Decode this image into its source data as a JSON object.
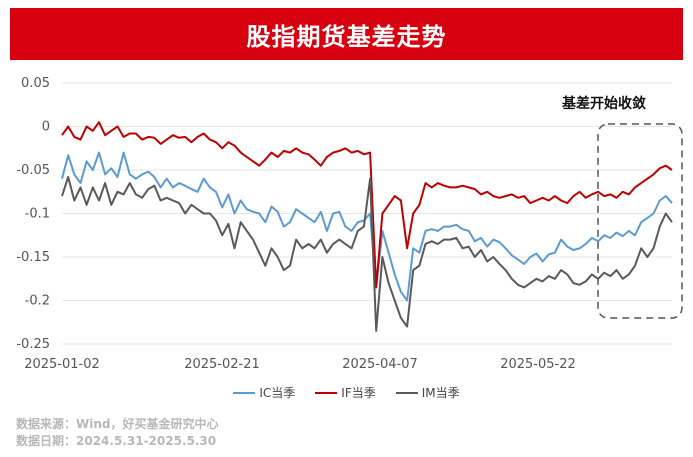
{
  "title": "股指期货基差走势",
  "footer": {
    "source": "数据来源：Wind，好买基金研究中心",
    "date": "数据日期：2024.5.31-2025.5.30"
  },
  "chart_data": {
    "type": "line",
    "annotation": "基差开始收敛",
    "y_ticks": [
      "0.05",
      "0",
      "-0.05",
      "-0.1",
      "-0.15",
      "-0.2",
      "-0.25"
    ],
    "ylim": [
      -0.25,
      0.05
    ],
    "x_tick_labels": [
      "2025-01-02",
      "2025-02-21",
      "2025-04-07",
      "2025-05-22"
    ],
    "grid": true,
    "legend_position": "bottom",
    "series": [
      {
        "name": "IC当季",
        "color": "#5b9bd5",
        "values": [
          -0.06,
          -0.033,
          -0.055,
          -0.065,
          -0.04,
          -0.05,
          -0.03,
          -0.055,
          -0.048,
          -0.058,
          -0.03,
          -0.055,
          -0.06,
          -0.055,
          -0.052,
          -0.058,
          -0.07,
          -0.06,
          -0.07,
          -0.065,
          -0.068,
          -0.072,
          -0.075,
          -0.06,
          -0.07,
          -0.075,
          -0.093,
          -0.078,
          -0.1,
          -0.085,
          -0.095,
          -0.098,
          -0.1,
          -0.11,
          -0.092,
          -0.098,
          -0.115,
          -0.11,
          -0.095,
          -0.1,
          -0.105,
          -0.11,
          -0.098,
          -0.12,
          -0.1,
          -0.098,
          -0.115,
          -0.12,
          -0.11,
          -0.108,
          -0.1,
          -0.185,
          -0.12,
          -0.145,
          -0.17,
          -0.19,
          -0.2,
          -0.14,
          -0.145,
          -0.12,
          -0.118,
          -0.12,
          -0.115,
          -0.115,
          -0.113,
          -0.118,
          -0.12,
          -0.132,
          -0.128,
          -0.138,
          -0.13,
          -0.133,
          -0.14,
          -0.148,
          -0.153,
          -0.158,
          -0.15,
          -0.146,
          -0.155,
          -0.147,
          -0.145,
          -0.13,
          -0.138,
          -0.142,
          -0.14,
          -0.135,
          -0.128,
          -0.132,
          -0.125,
          -0.128,
          -0.122,
          -0.126,
          -0.12,
          -0.125,
          -0.11,
          -0.105,
          -0.1,
          -0.085,
          -0.08,
          -0.088
        ]
      },
      {
        "name": "IF当季",
        "color": "#c00000",
        "values": [
          -0.01,
          0.0,
          -0.012,
          -0.015,
          0.0,
          -0.005,
          0.005,
          -0.01,
          -0.005,
          0.0,
          -0.012,
          -0.008,
          -0.008,
          -0.015,
          -0.012,
          -0.013,
          -0.02,
          -0.015,
          -0.01,
          -0.013,
          -0.012,
          -0.018,
          -0.012,
          -0.008,
          -0.015,
          -0.018,
          -0.025,
          -0.018,
          -0.022,
          -0.03,
          -0.035,
          -0.04,
          -0.045,
          -0.038,
          -0.03,
          -0.035,
          -0.028,
          -0.03,
          -0.025,
          -0.03,
          -0.032,
          -0.038,
          -0.045,
          -0.035,
          -0.03,
          -0.028,
          -0.025,
          -0.03,
          -0.028,
          -0.032,
          -0.03,
          -0.185,
          -0.1,
          -0.09,
          -0.08,
          -0.085,
          -0.14,
          -0.1,
          -0.09,
          -0.065,
          -0.07,
          -0.065,
          -0.068,
          -0.07,
          -0.07,
          -0.068,
          -0.07,
          -0.072,
          -0.078,
          -0.075,
          -0.08,
          -0.082,
          -0.08,
          -0.078,
          -0.082,
          -0.08,
          -0.088,
          -0.085,
          -0.082,
          -0.085,
          -0.08,
          -0.085,
          -0.088,
          -0.08,
          -0.075,
          -0.082,
          -0.078,
          -0.075,
          -0.08,
          -0.078,
          -0.082,
          -0.075,
          -0.078,
          -0.07,
          -0.065,
          -0.06,
          -0.055,
          -0.048,
          -0.045,
          -0.05
        ]
      },
      {
        "name": "IM当季",
        "color": "#595959",
        "values": [
          -0.08,
          -0.058,
          -0.085,
          -0.07,
          -0.09,
          -0.07,
          -0.085,
          -0.065,
          -0.09,
          -0.075,
          -0.078,
          -0.065,
          -0.078,
          -0.082,
          -0.072,
          -0.068,
          -0.085,
          -0.082,
          -0.085,
          -0.088,
          -0.1,
          -0.09,
          -0.095,
          -0.1,
          -0.1,
          -0.108,
          -0.125,
          -0.112,
          -0.14,
          -0.11,
          -0.12,
          -0.13,
          -0.145,
          -0.16,
          -0.14,
          -0.15,
          -0.165,
          -0.16,
          -0.13,
          -0.14,
          -0.135,
          -0.14,
          -0.13,
          -0.145,
          -0.135,
          -0.13,
          -0.135,
          -0.14,
          -0.12,
          -0.115,
          -0.06,
          -0.235,
          -0.15,
          -0.18,
          -0.2,
          -0.22,
          -0.23,
          -0.165,
          -0.16,
          -0.135,
          -0.132,
          -0.135,
          -0.13,
          -0.13,
          -0.128,
          -0.14,
          -0.138,
          -0.15,
          -0.142,
          -0.155,
          -0.15,
          -0.158,
          -0.165,
          -0.175,
          -0.182,
          -0.185,
          -0.18,
          -0.175,
          -0.178,
          -0.172,
          -0.175,
          -0.165,
          -0.17,
          -0.18,
          -0.182,
          -0.178,
          -0.17,
          -0.175,
          -0.168,
          -0.172,
          -0.165,
          -0.175,
          -0.17,
          -0.16,
          -0.14,
          -0.15,
          -0.14,
          -0.115,
          -0.1,
          -0.11
        ]
      }
    ]
  }
}
